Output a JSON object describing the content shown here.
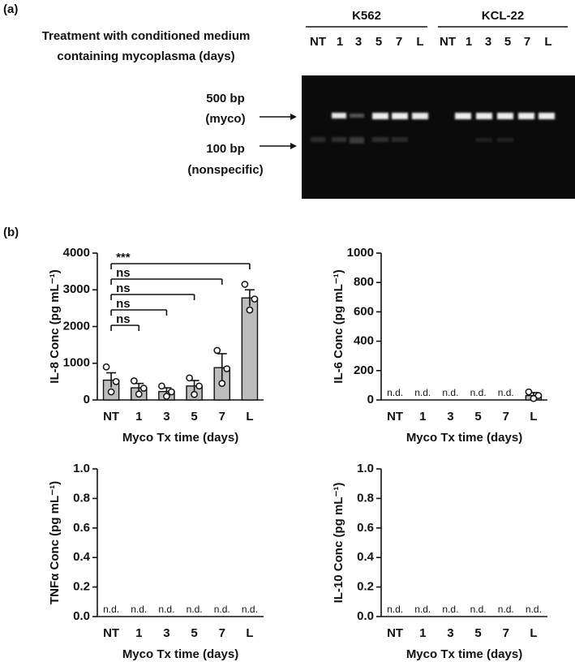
{
  "panel_a": {
    "label": "(a)",
    "treatment": [
      "Treatment with conditioned medium",
      "containing mycoplasma (days)"
    ],
    "groups": [
      {
        "name": "K562",
        "lanes": [
          "NT",
          "1",
          "3",
          "5",
          "7",
          "L"
        ]
      },
      {
        "name": "KCL-22",
        "lanes": [
          "NT",
          "1",
          "3",
          "5",
          "7",
          "L"
        ]
      }
    ],
    "markers": [
      [
        "500 bp",
        "(myco)"
      ],
      [
        "100 bp",
        "(nonspecific)"
      ]
    ]
  },
  "panel_b_label": "(b)",
  "chart_data": [
    {
      "type": "bar",
      "ylabel": "IL-8  Conc (pg mL⁻¹)",
      "xlabel": "Myco Tx time (days)",
      "categories": [
        "NT",
        "1",
        "3",
        "5",
        "7",
        "L"
      ],
      "values": [
        540,
        330,
        230,
        380,
        880,
        2780
      ],
      "errors": [
        200,
        120,
        100,
        150,
        380,
        220
      ],
      "points": [
        [
          900,
          500,
          220
        ],
        [
          520,
          320,
          160
        ],
        [
          380,
          220,
          100
        ],
        [
          600,
          380,
          150
        ],
        [
          1350,
          850,
          450
        ],
        [
          3150,
          2750,
          2450
        ]
      ],
      "annotations": [
        "***",
        "ns",
        "ns",
        "ns",
        "ns"
      ],
      "ylim": [
        0,
        4000
      ],
      "yticks": [
        0,
        1000,
        2000,
        3000,
        4000
      ],
      "color": "#bdbdbd"
    },
    {
      "type": "bar",
      "ylabel": "IL-6 Conc (pg mL⁻¹)",
      "xlabel": "Myco Tx time (days)",
      "categories": [
        "NT",
        "1",
        "3",
        "5",
        "7",
        "L"
      ],
      "values": [
        null,
        null,
        null,
        null,
        null,
        30
      ],
      "errors": [
        null,
        null,
        null,
        null,
        null,
        20
      ],
      "value_labels": [
        "n.d.",
        "n.d.",
        "n.d.",
        "n.d.",
        "n.d.",
        null
      ],
      "points": [
        [],
        [],
        [],
        [],
        [],
        [
          55,
          30,
          10
        ]
      ],
      "ylim": [
        0,
        1000
      ],
      "yticks": [
        0,
        200,
        400,
        600,
        800,
        1000
      ],
      "color": "#bdbdbd"
    },
    {
      "type": "bar",
      "ylabel": "TNFα Conc (pg mL⁻¹)",
      "xlabel": "Myco Tx time (days)",
      "categories": [
        "NT",
        "1",
        "3",
        "5",
        "7",
        "L"
      ],
      "values": [
        null,
        null,
        null,
        null,
        null,
        null
      ],
      "value_labels": [
        "n.d.",
        "n.d.",
        "n.d.",
        "n.d.",
        "n.d.",
        "n.d."
      ],
      "ylim": [
        0,
        1
      ],
      "yticks": [
        {
          "value": 0,
          "label": "0.0"
        },
        0.2,
        0.4,
        0.6,
        0.8,
        {
          "value": 1,
          "label": "1.0"
        }
      ],
      "color": "#bdbdbd"
    },
    {
      "type": "bar",
      "ylabel": "IL-10 Conc (pg mL⁻¹)",
      "xlabel": "Myco Tx time (days)",
      "categories": [
        "NT",
        "1",
        "3",
        "5",
        "7",
        "L"
      ],
      "values": [
        null,
        null,
        null,
        null,
        null,
        null
      ],
      "value_labels": [
        "n.d.",
        "n.d.",
        "n.d.",
        "n.d.",
        "n.d.",
        "n.d."
      ],
      "ylim": [
        0,
        1
      ],
      "yticks": [
        {
          "value": 0,
          "label": "0.0"
        },
        0.2,
        0.4,
        0.6,
        0.8,
        {
          "value": 1,
          "label": "1.0"
        }
      ],
      "color": "#bdbdbd"
    }
  ]
}
